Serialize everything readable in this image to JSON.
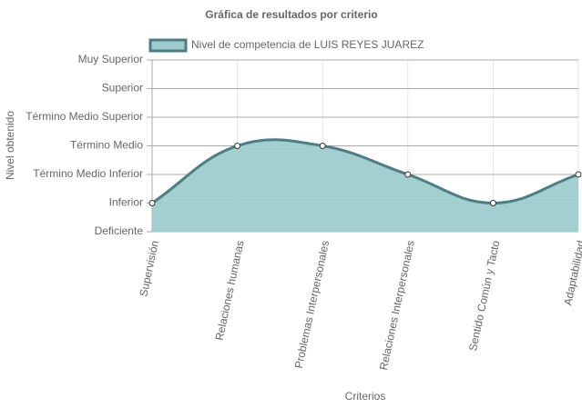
{
  "chart_data": {
    "type": "line",
    "title": "Gráfica de resultados por criterio",
    "x_label": "Criterios",
    "y_label": "Nivel obtenido",
    "categories": [
      "Supervisión",
      "Relaciones humanas",
      "Problemas Interpersonales",
      "Relaciones Interpersonales",
      "Sentido Común y Tacto",
      "Adaptabilidad"
    ],
    "series": [
      {
        "name": "Nivel de competencia de LUIS REYES JUAREZ",
        "color": "#9fcccf",
        "border_color": "#4e7d84",
        "values": [
          1,
          3,
          3,
          2,
          1,
          2
        ]
      }
    ],
    "ylim": [
      0,
      6
    ],
    "yticks": [
      {
        "value": 0,
        "label": "Deficiente"
      },
      {
        "value": 1,
        "label": "Inferior"
      },
      {
        "value": 2,
        "label": "Término Medio Inferior"
      },
      {
        "value": 3,
        "label": "Término Medio"
      },
      {
        "value": 4,
        "label": "Término Medio Superior"
      },
      {
        "value": 5,
        "label": "Superior"
      },
      {
        "value": 6,
        "label": "Muy Superior"
      }
    ],
    "grid": true,
    "legend": "top",
    "fill": true
  }
}
